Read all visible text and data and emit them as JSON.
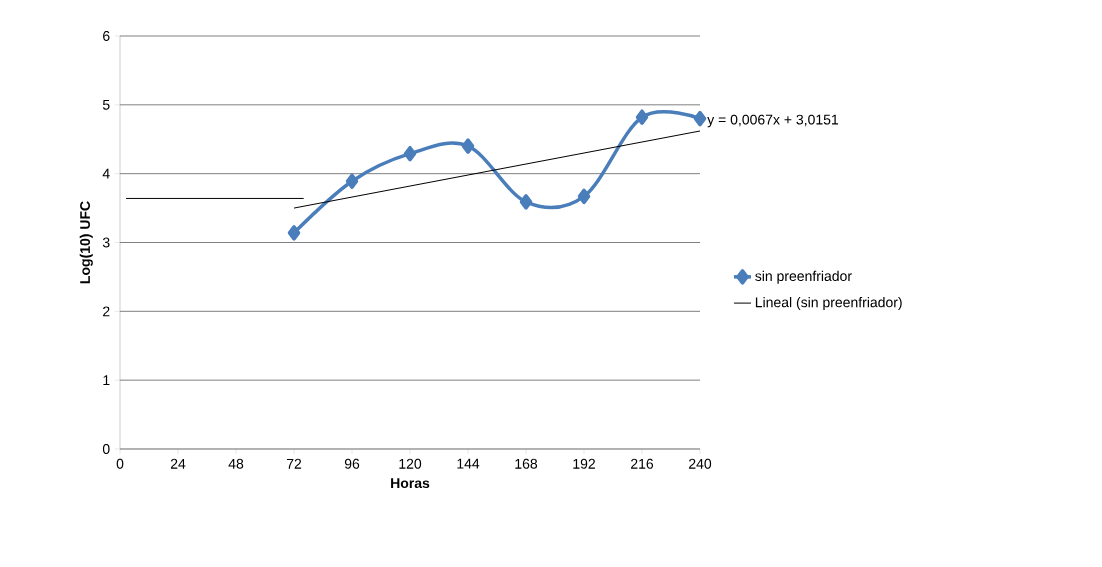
{
  "chart_data": {
    "type": "line",
    "xlabel": "Horas",
    "ylabel": "Log(10) UFC",
    "xlim": [
      0,
      240
    ],
    "xticks": [
      0,
      24,
      48,
      72,
      96,
      120,
      144,
      168,
      192,
      216,
      240
    ],
    "ylim": [
      0,
      6
    ],
    "yticks": [
      0,
      1,
      2,
      3,
      4,
      5,
      6
    ],
    "grid": "y",
    "legend": "right",
    "line_style": "solid",
    "series": [
      {
        "name": "sin preenfriador",
        "color": "#4a7ebb",
        "marker": "diamond",
        "x": [
          72,
          96,
          120,
          144,
          168,
          192,
          216,
          240
        ],
        "values": [
          3.14,
          3.89,
          4.29,
          4.4,
          3.59,
          3.67,
          4.82,
          4.8
        ]
      },
      {
        "name": "Lineal (sin preenfriador)",
        "type": "line",
        "color": "#000000",
        "marker": "none",
        "x": [
          72,
          240
        ],
        "values": [
          3.5,
          4.62
        ]
      },
      {
        "type": "line",
        "color": "#000000",
        "marker": "none",
        "x": [
          2.5,
          76
        ],
        "values": [
          3.64,
          3.64
        ]
      }
    ],
    "annotations": [
      {
        "text": "y = 0,0067x + 3,0151",
        "x": 240,
        "y": 4.62
      }
    ]
  }
}
